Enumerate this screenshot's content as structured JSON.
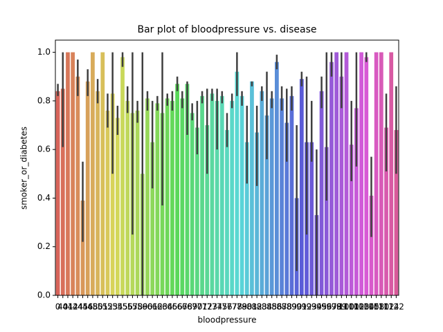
{
  "chart_data": {
    "type": "bar",
    "title": "Bar plot of bloodpressure vs. disease",
    "xlabel": "bloodpressure",
    "ylabel": "smoker_or_diabetes",
    "palette": "husl",
    "errorbar_color": "#3f3f3f",
    "categories": [
      "0",
      "40",
      "41",
      "42",
      "44",
      "45",
      "46",
      "48",
      "50",
      "51",
      "52",
      "53",
      "54",
      "55",
      "56",
      "57",
      "58",
      "59",
      "60",
      "61",
      "62",
      "63",
      "64",
      "65",
      "66",
      "67",
      "68",
      "69",
      "70",
      "71",
      "72",
      "73",
      "74",
      "75",
      "76",
      "77",
      "78",
      "79",
      "80",
      "81",
      "82",
      "83",
      "84",
      "85",
      "86",
      "87",
      "88",
      "89",
      "90",
      "91",
      "92",
      "93",
      "94",
      "95",
      "96",
      "97",
      "98",
      "99",
      "100",
      "101",
      "102",
      "103",
      "104",
      "105",
      "108",
      "110",
      "112",
      "114",
      "122"
    ],
    "values": [
      0.84,
      0.85,
      1,
      1,
      0.9,
      0.39,
      0.88,
      1,
      0.84,
      1,
      0.76,
      0.83,
      0.73,
      0.98,
      0.8,
      0.75,
      0.76,
      0.5,
      0.81,
      0.63,
      0.79,
      0.75,
      0.81,
      0.8,
      0.87,
      0.81,
      0.87,
      0.75,
      0.69,
      0.82,
      0.7,
      0.83,
      0.8,
      0.82,
      0.68,
      0.8,
      0.92,
      0.82,
      0.63,
      0.88,
      0.67,
      0.84,
      0.74,
      0.81,
      0.96,
      0.81,
      0.71,
      0.82,
      0.4,
      0.89,
      0.63,
      0.63,
      0.33,
      0.84,
      0.61,
      0.96,
      1,
      0.9,
      1,
      0.62,
      0.77,
      1,
      0.98,
      0.41,
      1,
      1,
      0.69,
      1,
      0.68
    ],
    "ci_low": [
      0.82,
      0.61,
      1,
      1,
      0.82,
      0.22,
      0.82,
      1,
      0.79,
      1,
      0.69,
      0.5,
      0.66,
      0.94,
      0.75,
      0.25,
      0.71,
      0,
      0.76,
      0.44,
      0.76,
      0.37,
      0.78,
      0.76,
      0.84,
      0.77,
      0.66,
      0.72,
      0.58,
      0.79,
      0.5,
      0.8,
      0.6,
      0.79,
      0.61,
      0.77,
      0.82,
      0.78,
      0.46,
      0.86,
      0.45,
      0.8,
      0.56,
      0.77,
      0.93,
      0.76,
      0.55,
      0.76,
      0.1,
      0.86,
      0.25,
      0.55,
      0,
      0.77,
      0.39,
      0.9,
      1,
      0.77,
      1,
      0.47,
      0.53,
      1,
      0.96,
      0.24,
      1,
      1,
      0.51,
      1,
      0.5
    ],
    "ci_high": [
      0.87,
      1,
      1,
      1,
      0.97,
      0.55,
      0.93,
      1,
      0.89,
      1,
      0.83,
      1,
      0.78,
      1,
      0.86,
      1,
      0.8,
      1,
      0.84,
      0.8,
      0.82,
      1,
      0.83,
      0.84,
      0.9,
      0.84,
      0.88,
      0.79,
      0.8,
      0.84,
      0.85,
      0.85,
      0.85,
      0.84,
      0.75,
      0.83,
      1,
      0.84,
      0.78,
      0.88,
      0.78,
      0.86,
      0.92,
      0.84,
      0.99,
      0.86,
      0.85,
      0.86,
      0.7,
      0.92,
      0.9,
      0.8,
      0.6,
      0.9,
      1,
      1,
      1,
      1,
      1,
      0.8,
      1,
      1,
      1,
      0.57,
      1,
      1,
      0.83,
      1,
      0.86
    ],
    "ylim": [
      0,
      1.05
    ],
    "yticks": [
      {
        "value": 0,
        "label": "0.0"
      },
      {
        "value": 0.2,
        "label": "0.2"
      },
      {
        "value": 0.4,
        "label": "0.4"
      },
      {
        "value": 0.6,
        "label": "0.6"
      },
      {
        "value": 0.8,
        "label": "0.8"
      },
      {
        "value": 1,
        "label": "1.0"
      }
    ]
  }
}
